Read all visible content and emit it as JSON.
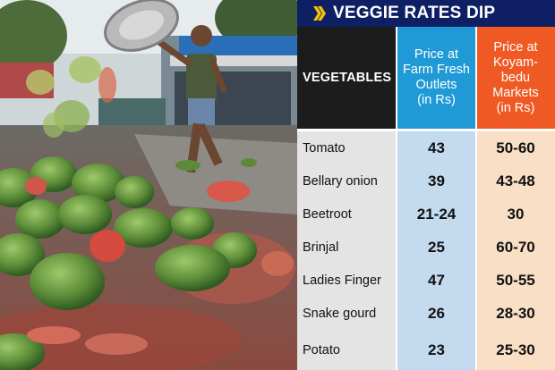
{
  "banner": {
    "title": "VEGGIE RATES DIP",
    "icon": "double-chevron-icon"
  },
  "table": {
    "headers": {
      "vegetables": "VEGETABLES",
      "farm_lines": [
        "Price at",
        "Farm Fresh",
        "Outlets",
        "(in Rs)"
      ],
      "koyambedu_lines": [
        "Price at",
        "Koyam-",
        "bedu",
        "Markets",
        "(in Rs)"
      ]
    },
    "rows": [
      {
        "name": "Tomato",
        "farm": "43",
        "koyambedu": "50-60"
      },
      {
        "name": "Bellary onion",
        "farm": "39",
        "koyambedu": "43-48"
      },
      {
        "name": "Beetroot",
        "farm": "21-24",
        "koyambedu": "30"
      },
      {
        "name": "Brinjal",
        "farm": "25",
        "koyambedu": "60-70"
      },
      {
        "name": "Ladies Finger",
        "farm": "47",
        "koyambedu": "50-55"
      },
      {
        "name": "Snake gourd",
        "farm": "26",
        "koyambedu": "28-30"
      },
      {
        "name": "Potato",
        "farm": "23",
        "koyambedu": "25-30"
      }
    ]
  },
  "colors": {
    "banner": "#0f1f63",
    "chevron": "#f5c400",
    "header_dark": "#1c1c1c",
    "header_blue": "#1f9ad6",
    "header_orange": "#ef5a24",
    "cell_grey": "#e4e4e4",
    "cell_blue": "#c4daef",
    "cell_peach": "#f9dfc6"
  }
}
